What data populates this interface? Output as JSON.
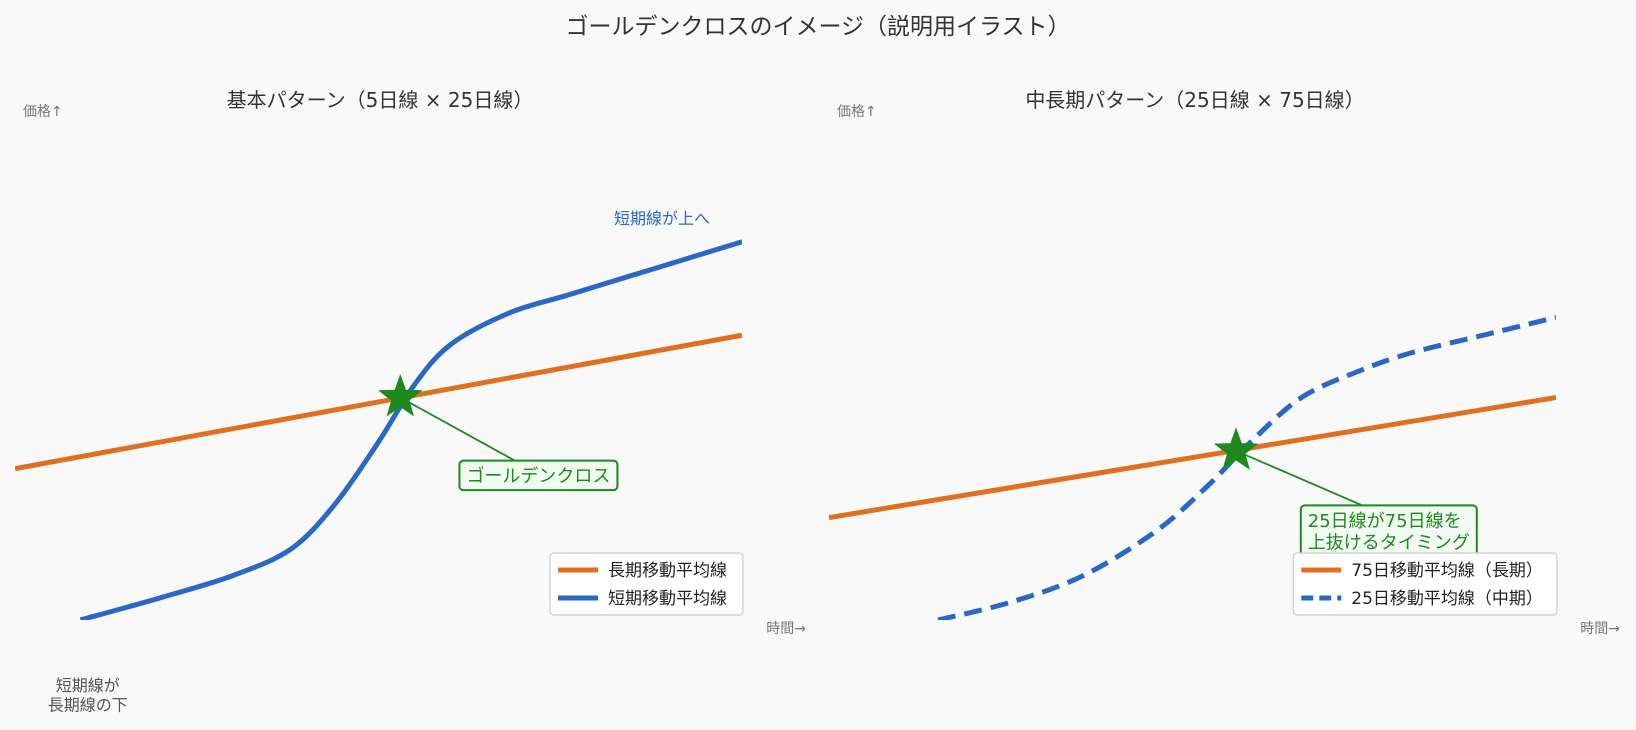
{
  "figure_title": "ゴールデンクロスのイメージ（説明用イラスト）",
  "chart_data": [
    {
      "type": "line",
      "title": "基本パターン（5日線 × 25日線）",
      "ylabel": "価格↑",
      "xlabel": "時間→",
      "xlim": [
        0,
        10
      ],
      "ylim": [
        0,
        10
      ],
      "grid": false,
      "axes_visible": false,
      "legend_position": "bottom-right",
      "series": [
        {
          "name": "長期移動平均線",
          "color": "#e07020",
          "style": "solid",
          "x": [
            0,
            10
          ],
          "y": [
            3.4,
            6.4
          ]
        },
        {
          "name": "短期移動平均線",
          "color": "#2a68c8",
          "style": "solid",
          "x": [
            0.9,
            2.0,
            3.0,
            3.8,
            4.4,
            5.0,
            5.5,
            6.0,
            6.8,
            7.6,
            8.4,
            9.2,
            10.0
          ],
          "y": [
            0.0,
            0.5,
            1.0,
            1.6,
            2.6,
            4.0,
            5.3,
            6.2,
            6.9,
            7.3,
            7.7,
            8.1,
            8.5
          ]
        }
      ],
      "cross_point": {
        "x": 5.3,
        "y": 5.0,
        "marker": "star",
        "color": "#1e8a1e"
      },
      "annotations": [
        {
          "text": "ゴールデンクロス",
          "x": 7.2,
          "y": 3.25,
          "boxed": true,
          "color": "#1e8a1e"
        },
        {
          "text": "短期線が上へ",
          "x": 8.9,
          "y": 8.9,
          "color": "#2a68c8"
        },
        {
          "lines": [
            "短期線が",
            "長期線の下"
          ],
          "x": 1.0,
          "y": -1.6,
          "color": "#555555"
        }
      ]
    },
    {
      "type": "line",
      "title": "中長期パターン（25日線 × 75日線）",
      "ylabel": "価格↑",
      "xlabel": "時間→",
      "xlim": [
        0,
        10
      ],
      "ylim": [
        0,
        10
      ],
      "grid": false,
      "axes_visible": false,
      "legend_position": "bottom-right",
      "series": [
        {
          "name": "75日移動平均線（長期）",
          "color": "#e07020",
          "style": "solid",
          "x": [
            0,
            10
          ],
          "y": [
            2.3,
            5.0
          ]
        },
        {
          "name": "25日移動平均線（中期）",
          "color": "#2a68c8",
          "style": "dashed",
          "x": [
            1.5,
            2.5,
            3.5,
            4.5,
            5.2,
            5.8,
            6.5,
            7.3,
            8.0,
            9.0,
            10.0
          ],
          "y": [
            0.0,
            0.4,
            1.0,
            2.0,
            3.0,
            4.0,
            5.0,
            5.6,
            6.0,
            6.4,
            6.8
          ]
        }
      ],
      "cross_point": {
        "x": 5.6,
        "y": 3.8,
        "marker": "star",
        "color": "#1e8a1e"
      },
      "annotations": [
        {
          "lines": [
            "25日線が75日線を",
            "上抜けるタイミング"
          ],
          "x": 7.7,
          "y": 2.0,
          "boxed": true,
          "color": "#1e8a1e"
        }
      ]
    }
  ]
}
